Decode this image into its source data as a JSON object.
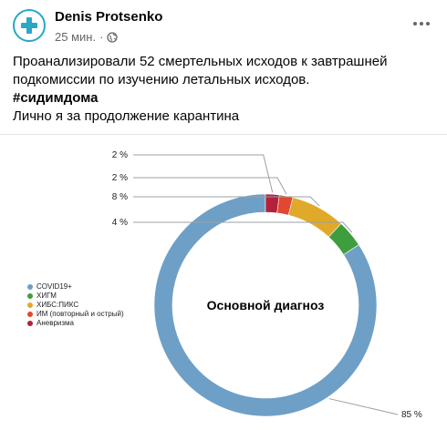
{
  "post": {
    "author": "Denis Protsenko",
    "time": "25 мин.",
    "separator": "·",
    "privacy_icon": "globe-icon",
    "more_icon": "more-options-icon",
    "text_lines": [
      "Проанализировали 52 смертельных исходов к завтрашней",
      "подкомиссии по изучению летальных исходов."
    ],
    "hashtag": "#сидимдома",
    "closing_line": "Лично я за продолжение карантина"
  },
  "chart_data": {
    "type": "pie",
    "donut": true,
    "title": "Основной диагноз",
    "categories": [
      "COVID19+",
      "ХИГМ",
      "ХИБС:ПИКС",
      "ИМ (повторный и острый)",
      "Аневризма"
    ],
    "values": [
      85,
      4,
      8,
      2,
      2
    ],
    "labels": [
      "85 %",
      "4 %",
      "8 %",
      "2 %",
      "2 %"
    ],
    "colors": [
      "#6e9fc6",
      "#3e9e3e",
      "#e0a92a",
      "#e2472f",
      "#b3213b"
    ],
    "legend_position": "left"
  }
}
